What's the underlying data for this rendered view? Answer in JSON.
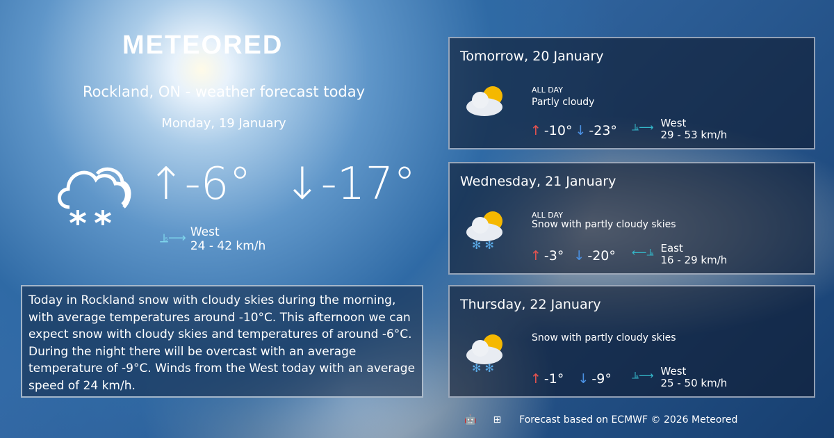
{
  "brand": "METEORED",
  "header": {
    "title": "Rockland, ON - weather forecast today",
    "date": "Monday, 19 January"
  },
  "today": {
    "icon": "snow-cloud-icon",
    "max": "-6°",
    "min": "-17°",
    "wind_dir": "West",
    "wind_speed": "24 - 42 km/h"
  },
  "summary": "Today in Rockland snow with cloudy skies during the morning, with average temperatures around -10°C. This afternoon we can expect snow with cloudy skies and temperatures of around -6°C. During the night there will be overcast with an average temperature of -9°C. Winds from the West today with an average speed of 24 km/h.",
  "forecast": [
    {
      "day": "Tomorrow, 20 January",
      "label": "ALL DAY",
      "condition": "Partly cloudy",
      "icon": "partly-cloudy-icon",
      "max": "-10°",
      "min": "-23°",
      "wind_dir": "West",
      "wind_speed": "29 - 53 km/h"
    },
    {
      "day": "Wednesday, 21 January",
      "label": "ALL DAY",
      "condition": "Snow with partly cloudy skies",
      "icon": "snow-partly-cloudy-icon",
      "max": "-3°",
      "min": "-20°",
      "wind_dir": "East",
      "wind_speed": "16 - 29 km/h"
    },
    {
      "day": "Thursday, 22 January",
      "label": "",
      "condition": "Snow with partly cloudy skies",
      "icon": "snow-partly-cloudy-icon",
      "max": "-1°",
      "min": "-9°",
      "wind_dir": "West",
      "wind_speed": "25 - 50 km/h"
    }
  ],
  "footer": {
    "text": "Forecast based on ECMWF © 2026 Meteored",
    "icons": [
      "android-icon",
      "apple-icon",
      "windows-icon"
    ]
  },
  "colors": {
    "max_arrow": "#e8534f",
    "min_arrow": "#4a90e2",
    "wind": "#34b7c9"
  }
}
